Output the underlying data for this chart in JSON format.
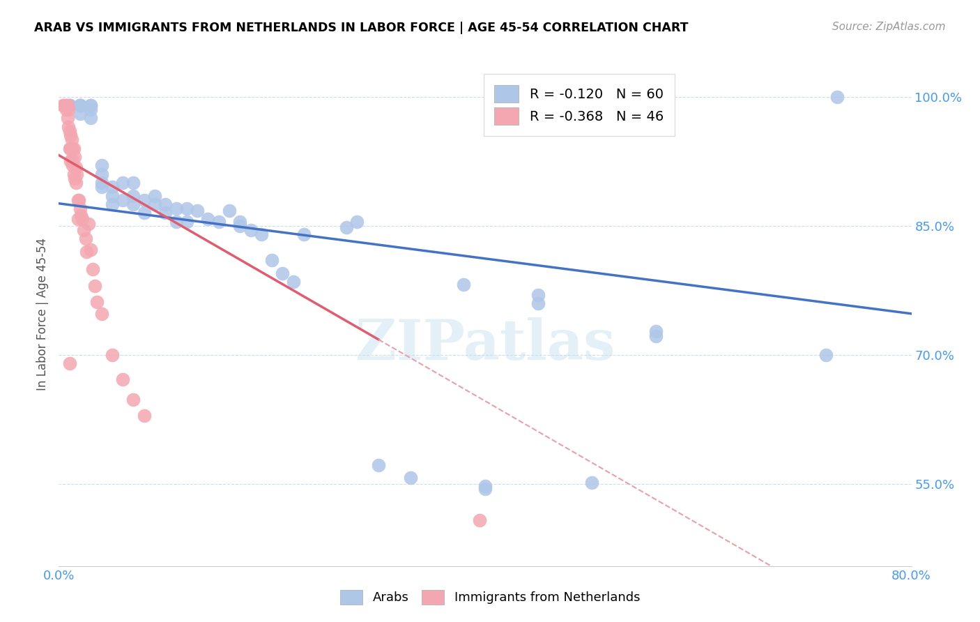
{
  "title": "ARAB VS IMMIGRANTS FROM NETHERLANDS IN LABOR FORCE | AGE 45-54 CORRELATION CHART",
  "source": "Source: ZipAtlas.com",
  "ylabel": "In Labor Force | Age 45-54",
  "xlim": [
    0.0,
    0.8
  ],
  "ylim": [
    0.455,
    1.04
  ],
  "yticks": [
    0.55,
    0.7,
    0.85,
    1.0
  ],
  "ytick_labels": [
    "55.0%",
    "70.0%",
    "85.0%",
    "100.0%"
  ],
  "xticks": [
    0.0,
    0.1,
    0.2,
    0.3,
    0.4,
    0.5,
    0.6,
    0.7,
    0.8
  ],
  "xtick_labels": [
    "0.0%",
    "",
    "",
    "",
    "",
    "",
    "",
    "",
    "80.0%"
  ],
  "legend_arab_r": "R = ",
  "legend_arab_rval": "-0.120",
  "legend_arab_n": "   N = 60",
  "legend_neth_r": "R = ",
  "legend_neth_rval": "-0.368",
  "legend_neth_n": "   N = 46",
  "arab_color": "#aec6e8",
  "netherlands_color": "#f4a7b0",
  "trendline_arab_color": "#4472c4",
  "trendline_netherlands_color": "#e05c6e",
  "trendline_dash_color": "#e8a0aa",
  "watermark": "ZIPatlas",
  "arab_trendline": [
    [
      0.0,
      0.876
    ],
    [
      0.8,
      0.748
    ]
  ],
  "neth_trendline_solid": [
    [
      0.0,
      0.932
    ],
    [
      0.3,
      0.718
    ]
  ],
  "neth_trendline_dash": [
    [
      0.3,
      0.718
    ],
    [
      0.8,
      0.361
    ]
  ],
  "arab_x": [
    0.01,
    0.01,
    0.01,
    0.02,
    0.02,
    0.02,
    0.02,
    0.02,
    0.03,
    0.03,
    0.03,
    0.03,
    0.04,
    0.04,
    0.04,
    0.04,
    0.05,
    0.05,
    0.05,
    0.06,
    0.06,
    0.07,
    0.07,
    0.07,
    0.08,
    0.08,
    0.09,
    0.09,
    0.1,
    0.1,
    0.11,
    0.11,
    0.12,
    0.12,
    0.13,
    0.14,
    0.15,
    0.16,
    0.17,
    0.18,
    0.2,
    0.21,
    0.22,
    0.28,
    0.3,
    0.33,
    0.38,
    0.4,
    0.4,
    0.45,
    0.45,
    0.5,
    0.56,
    0.56,
    0.72,
    0.73,
    0.17,
    0.19,
    0.23,
    0.27
  ],
  "arab_y": [
    0.99,
    0.99,
    0.99,
    0.99,
    0.99,
    0.99,
    0.99,
    0.98,
    0.99,
    0.99,
    0.985,
    0.975,
    0.92,
    0.91,
    0.9,
    0.895,
    0.895,
    0.885,
    0.875,
    0.9,
    0.88,
    0.9,
    0.885,
    0.875,
    0.88,
    0.865,
    0.885,
    0.875,
    0.875,
    0.865,
    0.87,
    0.855,
    0.87,
    0.855,
    0.868,
    0.858,
    0.855,
    0.868,
    0.85,
    0.845,
    0.81,
    0.795,
    0.785,
    0.855,
    0.572,
    0.558,
    0.782,
    0.548,
    0.545,
    0.76,
    0.77,
    0.552,
    0.728,
    0.722,
    0.7,
    1.0,
    0.855,
    0.84,
    0.84,
    0.848
  ],
  "neth_x": [
    0.004,
    0.005,
    0.006,
    0.007,
    0.007,
    0.008,
    0.008,
    0.009,
    0.009,
    0.01,
    0.01,
    0.011,
    0.011,
    0.011,
    0.012,
    0.012,
    0.013,
    0.013,
    0.014,
    0.014,
    0.015,
    0.015,
    0.016,
    0.016,
    0.017,
    0.018,
    0.018,
    0.019,
    0.02,
    0.021,
    0.022,
    0.023,
    0.025,
    0.026,
    0.028,
    0.03,
    0.032,
    0.034,
    0.036,
    0.04,
    0.05,
    0.06,
    0.07,
    0.08,
    0.395,
    0.01
  ],
  "neth_y": [
    0.99,
    0.99,
    0.99,
    0.99,
    0.985,
    0.99,
    0.975,
    0.985,
    0.965,
    0.96,
    0.94,
    0.955,
    0.94,
    0.925,
    0.95,
    0.928,
    0.94,
    0.92,
    0.94,
    0.91,
    0.93,
    0.905,
    0.918,
    0.9,
    0.91,
    0.88,
    0.858,
    0.88,
    0.87,
    0.862,
    0.858,
    0.845,
    0.835,
    0.82,
    0.852,
    0.822,
    0.8,
    0.78,
    0.762,
    0.748,
    0.7,
    0.672,
    0.648,
    0.63,
    0.508,
    0.69
  ]
}
